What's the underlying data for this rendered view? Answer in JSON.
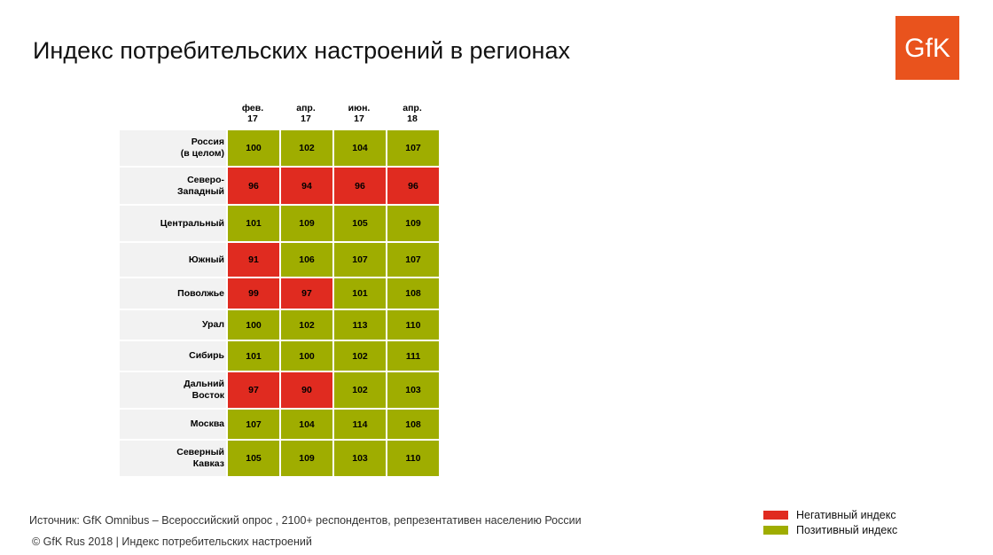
{
  "title": "Индекс потребительских настроений в регионах",
  "logo_text": "GfK",
  "colors": {
    "negative": "#e02b20",
    "positive": "#9fad00",
    "logo": "#e9531d"
  },
  "chart_data": {
    "type": "table",
    "title": "Индекс потребительских настроений в регионах",
    "columns": [
      "фев.\n17",
      "апр.\n17",
      "июн.\n17",
      "апр.\n18"
    ],
    "rows": [
      {
        "label": "Россия\n(в целом)",
        "values": [
          100,
          102,
          104,
          107
        ]
      },
      {
        "label": "Северо-\nЗападный",
        "values": [
          96,
          94,
          96,
          96
        ]
      },
      {
        "label": "Центральный",
        "values": [
          101,
          109,
          105,
          109
        ]
      },
      {
        "label": "Южный",
        "values": [
          91,
          106,
          107,
          107
        ]
      },
      {
        "label": "Поволжье",
        "values": [
          99,
          97,
          101,
          108
        ]
      },
      {
        "label": "Урал",
        "values": [
          100,
          102,
          113,
          110
        ]
      },
      {
        "label": "Сибирь",
        "values": [
          101,
          100,
          102,
          111
        ]
      },
      {
        "label": "Дальний\nВосток",
        "values": [
          97,
          90,
          102,
          103
        ]
      },
      {
        "label": "Москва",
        "values": [
          107,
          104,
          114,
          108
        ]
      },
      {
        "label": "Северный\nКавказ",
        "values": [
          105,
          109,
          103,
          110
        ]
      }
    ],
    "threshold": 100
  },
  "footer": {
    "source": "Источник: GfK Omnibus – Всероссийский опрос , 2100+ респондентов, репрезентативен населению России",
    "copyright": "© GfK Rus 2018 | Индекс потребительских настроений"
  },
  "legend": {
    "negative_label": "Негативный индекс",
    "positive_label": "Позитивный индекс"
  }
}
